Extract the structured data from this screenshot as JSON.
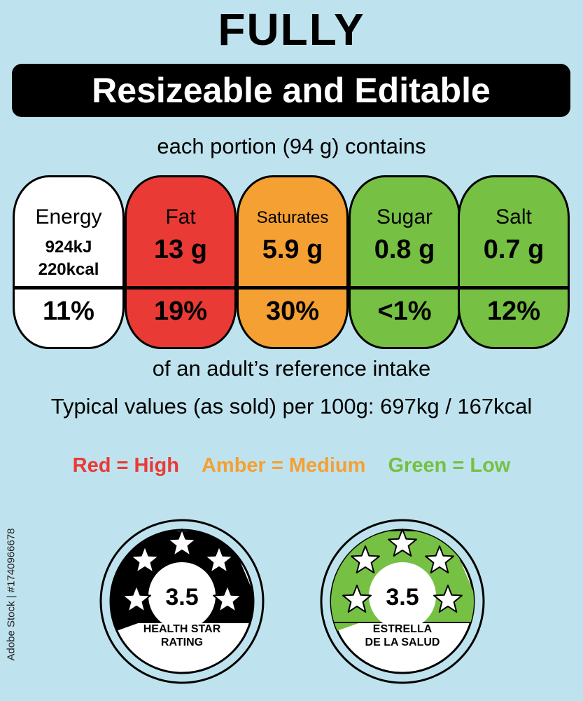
{
  "header": {
    "title": "FULLY",
    "banner": "Resizeable and Editable",
    "portion": "each portion (94 g) contains"
  },
  "nutrients": [
    {
      "label": "Energy",
      "line1": "924kJ",
      "line2": "220kcal",
      "percent": "11%",
      "color": "#ffffff"
    },
    {
      "label": "Fat",
      "value": "13 g",
      "percent": "19%",
      "color": "#ea3a36"
    },
    {
      "label": "Saturates",
      "value": "5.9 g",
      "percent": "30%",
      "color": "#f5a032"
    },
    {
      "label": "Sugar",
      "value": "0.8 g",
      "percent": "<1%",
      "color": "#76c043"
    },
    {
      "label": "Salt",
      "value": "0.7 g",
      "percent": "12%",
      "color": "#76c043"
    }
  ],
  "reference_text": "of an adult’s reference intake",
  "typical_text": "Typical values (as sold) per 100g: 697kg / 167kcal",
  "legend": {
    "red": {
      "text": "Red = High",
      "color": "#ea3a36"
    },
    "amber": {
      "text": "Amber = Medium",
      "color": "#f5a032"
    },
    "green": {
      "text": "Green = Low",
      "color": "#76c043"
    }
  },
  "stock_id": "Adobe Stock | #1740966678",
  "badges": [
    {
      "rating": "3.5",
      "caption_line1": "HEALTH STAR",
      "caption_line2": "RATING",
      "fill_color": "#000000",
      "star_color": "#ffffff"
    },
    {
      "rating": "3.5",
      "caption_line1": "ESTRELLA",
      "caption_line2": "DE LA SALUD",
      "fill_color": "#76c043",
      "star_color": "#ffffff"
    }
  ],
  "colors": {
    "background": "#bfe3ee",
    "banner": "#000000"
  }
}
